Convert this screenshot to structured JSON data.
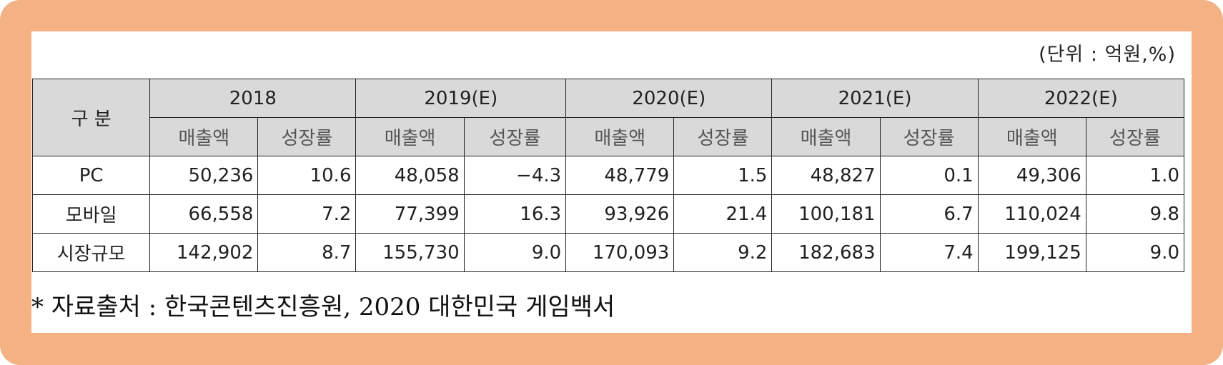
{
  "unit_note": "(단위 : 억원,%)",
  "table": {
    "header_label": "구 분",
    "years": [
      "2018",
      "2019(E)",
      "2020(E)",
      "2021(E)",
      "2022(E)"
    ],
    "sub_headers": {
      "sales": "매출액",
      "growth": "성장률"
    },
    "rows": [
      {
        "label": "PC",
        "cells": [
          "50,236",
          "10.6",
          "48,058",
          "−4.3",
          "48,779",
          "1.5",
          "48,827",
          "0.1",
          "49,306",
          "1.0"
        ]
      },
      {
        "label": "모바일",
        "cells": [
          "66,558",
          "7.2",
          "77,399",
          "16.3",
          "93,926",
          "21.4",
          "100,181",
          "6.7",
          "110,024",
          "9.8"
        ]
      },
      {
        "label": "시장규모",
        "cells": [
          "142,902",
          "8.7",
          "155,730",
          "9.0",
          "170,093",
          "9.2",
          "182,683",
          "7.4",
          "199,125",
          "9.0"
        ]
      }
    ]
  },
  "source_note": "* 자료출처 : 한국콘텐츠진흥원, 2020 대한민국 게임백서",
  "colors": {
    "frame": "#f4b183",
    "header_fill": "#d9d9d9"
  }
}
